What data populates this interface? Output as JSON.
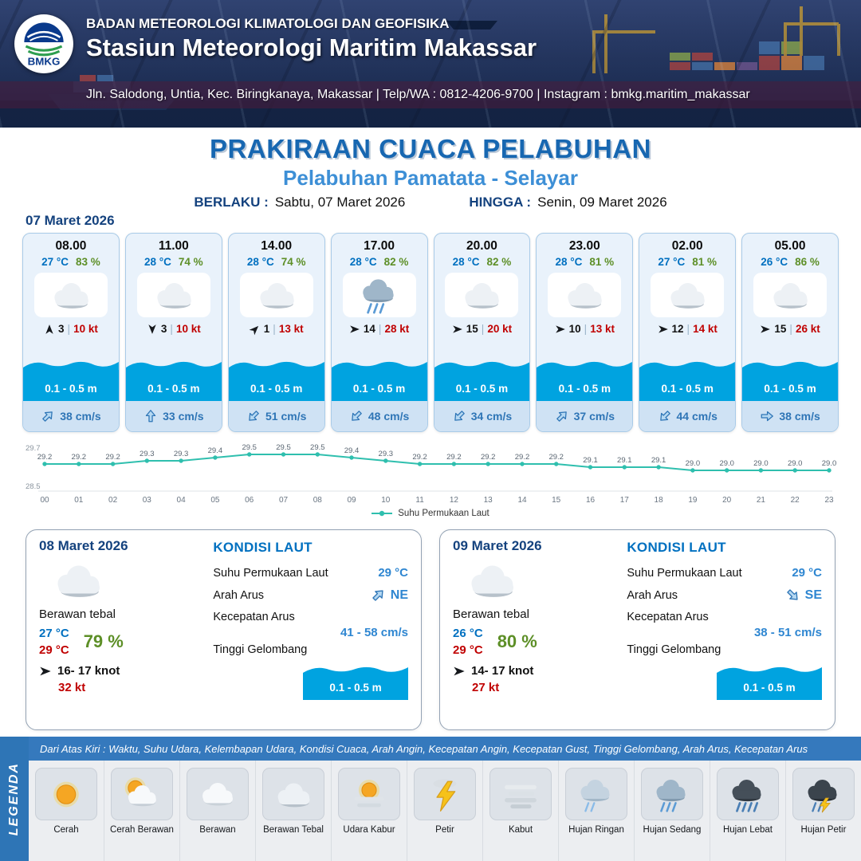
{
  "header": {
    "agency": "BADAN METEOROLOGI KLIMATOLOGI DAN GEOFISIKA",
    "station": "Stasiun Meteorologi Maritim Makassar",
    "address": "Jln. Salodong, Untia, Kec. Biringkanaya, Makassar | Telp/WA : 0812-4206-9700 | Instagram : bmkg.maritim_makassar",
    "logo_text": "BMKG"
  },
  "title": {
    "main": "PRAKIRAAN CUACA PELABUHAN",
    "subtitle": "Pelabuhan Pamatata - Selayar",
    "berlaku_label": "BERLAKU :",
    "berlaku_value": "Sabtu, 07 Maret 2026",
    "hingga_label": "HINGGA :",
    "hingga_value": "Senin, 09 Maret 2026"
  },
  "forecast": {
    "date": "07 Maret 2026",
    "cards": [
      {
        "time": "08.00",
        "temp": "27 °C",
        "humidity": "83 %",
        "icon": "berawan-tebal",
        "wind_dir": "N",
        "wind_speed": "3",
        "gust": "10 kt",
        "wave": "0.1 - 0.5 m",
        "current_dir": "NE",
        "current_speed": "38 cm/s"
      },
      {
        "time": "11.00",
        "temp": "28 °C",
        "humidity": "74 %",
        "icon": "berawan-tebal",
        "wind_dir": "S",
        "wind_speed": "3",
        "gust": "10 kt",
        "wave": "0.1 - 0.5 m",
        "current_dir": "N",
        "current_speed": "33 cm/s"
      },
      {
        "time": "14.00",
        "temp": "28 °C",
        "humidity": "74 %",
        "icon": "berawan-tebal",
        "wind_dir": "NE",
        "wind_speed": "1",
        "gust": "13 kt",
        "wave": "0.1 - 0.5 m",
        "current_dir": "SW",
        "current_speed": "51 cm/s"
      },
      {
        "time": "17.00",
        "temp": "28 °C",
        "humidity": "82 %",
        "icon": "hujan-sedang",
        "wind_dir": "E",
        "wind_speed": "14",
        "gust": "28 kt",
        "wave": "0.1 - 0.5 m",
        "current_dir": "SW",
        "current_speed": "48 cm/s"
      },
      {
        "time": "20.00",
        "temp": "28 °C",
        "humidity": "82 %",
        "icon": "berawan-tebal",
        "wind_dir": "E",
        "wind_speed": "15",
        "gust": "20 kt",
        "wave": "0.1 - 0.5 m",
        "current_dir": "SW",
        "current_speed": "34 cm/s"
      },
      {
        "time": "23.00",
        "temp": "28 °C",
        "humidity": "81 %",
        "icon": "berawan-tebal",
        "wind_dir": "E",
        "wind_speed": "10",
        "gust": "13 kt",
        "wave": "0.1 - 0.5 m",
        "current_dir": "NE",
        "current_speed": "37 cm/s"
      },
      {
        "time": "02.00",
        "temp": "27 °C",
        "humidity": "81 %",
        "icon": "berawan-tebal",
        "wind_dir": "E",
        "wind_speed": "12",
        "gust": "14 kt",
        "wave": "0.1 - 0.5 m",
        "current_dir": "SW",
        "current_speed": "44 cm/s"
      },
      {
        "time": "05.00",
        "temp": "26 °C",
        "humidity": "86 %",
        "icon": "berawan-tebal",
        "wind_dir": "E",
        "wind_speed": "15",
        "gust": "26 kt",
        "wave": "0.1 - 0.5 m",
        "current_dir": "E",
        "current_speed": "38 cm/s"
      }
    ]
  },
  "chart_data": {
    "type": "line",
    "series_label": "Suhu Permukaan Laut",
    "x": [
      "00",
      "01",
      "02",
      "03",
      "04",
      "05",
      "06",
      "07",
      "08",
      "09",
      "10",
      "11",
      "12",
      "13",
      "14",
      "15",
      "16",
      "17",
      "18",
      "19",
      "20",
      "21",
      "22",
      "23"
    ],
    "values": [
      29.2,
      29.2,
      29.2,
      29.3,
      29.3,
      29.4,
      29.5,
      29.5,
      29.5,
      29.4,
      29.3,
      29.2,
      29.2,
      29.2,
      29.2,
      29.2,
      29.1,
      29.1,
      29.1,
      29.0,
      29.0,
      29.0,
      29.0,
      29.0
    ],
    "ylim": [
      28.5,
      29.7
    ],
    "color": "#2fbfae",
    "legend_position": "bottom",
    "grid": false
  },
  "daily": [
    {
      "date": "08 Maret 2026",
      "icon": "berawan-tebal",
      "condition": "Berawan tebal",
      "temp_day": "27 °C",
      "temp_night": "29 °C",
      "humidity": "79 %",
      "wind_dir": "E",
      "wind": "16- 17 knot",
      "gust": "32 kt",
      "sea_title": "KONDISI LAUT",
      "sst_label": "Suhu Permukaan Laut",
      "sst": "29 °C",
      "arah_label": "Arah Arus",
      "arah_dir": "NE",
      "arah": "NE",
      "kec_label": "Kecepatan Arus",
      "kec": "41 - 58 cm/s",
      "gel_label": "Tinggi Gelombang",
      "gel": "0.1 - 0.5 m"
    },
    {
      "date": "09 Maret 2026",
      "icon": "berawan-tebal",
      "condition": "Berawan tebal",
      "temp_day": "26 °C",
      "temp_night": "29 °C",
      "humidity": "80 %",
      "wind_dir": "E",
      "wind": "14- 17 knot",
      "gust": "27 kt",
      "sea_title": "KONDISI LAUT",
      "sst_label": "Suhu Permukaan Laut",
      "sst": "29 °C",
      "arah_label": "Arah Arus",
      "arah_dir": "SE",
      "arah": "SE",
      "kec_label": "Kecepatan Arus",
      "kec": "38 - 51 cm/s",
      "gel_label": "Tinggi Gelombang",
      "gel": "0.1 - 0.5 m"
    }
  ],
  "legend": {
    "title": "LEGENDA",
    "description": "Dari Atas Kiri : Waktu, Suhu Udara, Kelembapan Udara, Kondisi Cuaca, Arah Angin, Kecepatan Angin, Kecepatan Gust, Tinggi Gelombang, Arah Arus, Kecepatan Arus",
    "items": [
      {
        "label": "Cerah",
        "icon": "cerah"
      },
      {
        "label": "Cerah Berawan",
        "icon": "cerah-berawan"
      },
      {
        "label": "Berawan",
        "icon": "berawan"
      },
      {
        "label": "Berawan Tebal",
        "icon": "berawan-tebal"
      },
      {
        "label": "Udara Kabur",
        "icon": "udara-kabur"
      },
      {
        "label": "Petir",
        "icon": "petir"
      },
      {
        "label": "Kabut",
        "icon": "kabut"
      },
      {
        "label": "Hujan Ringan",
        "icon": "hujan-ringan"
      },
      {
        "label": "Hujan Sedang",
        "icon": "hujan-sedang"
      },
      {
        "label": "Hujan Lebat",
        "icon": "hujan-lebat"
      },
      {
        "label": "Hujan Petir",
        "icon": "hujan-petir"
      }
    ]
  },
  "colors": {
    "title_blue": "#1767b1",
    "label_navy": "#14427e",
    "temp_blue": "#0070c0",
    "humidity_green": "#5d8f27",
    "gust_red": "#c00000",
    "wave_blue": "#00a3e0",
    "current_blue": "#2e75b6",
    "chart_teal": "#2fbfae",
    "legend_bar_blue": "#2e75b6"
  }
}
